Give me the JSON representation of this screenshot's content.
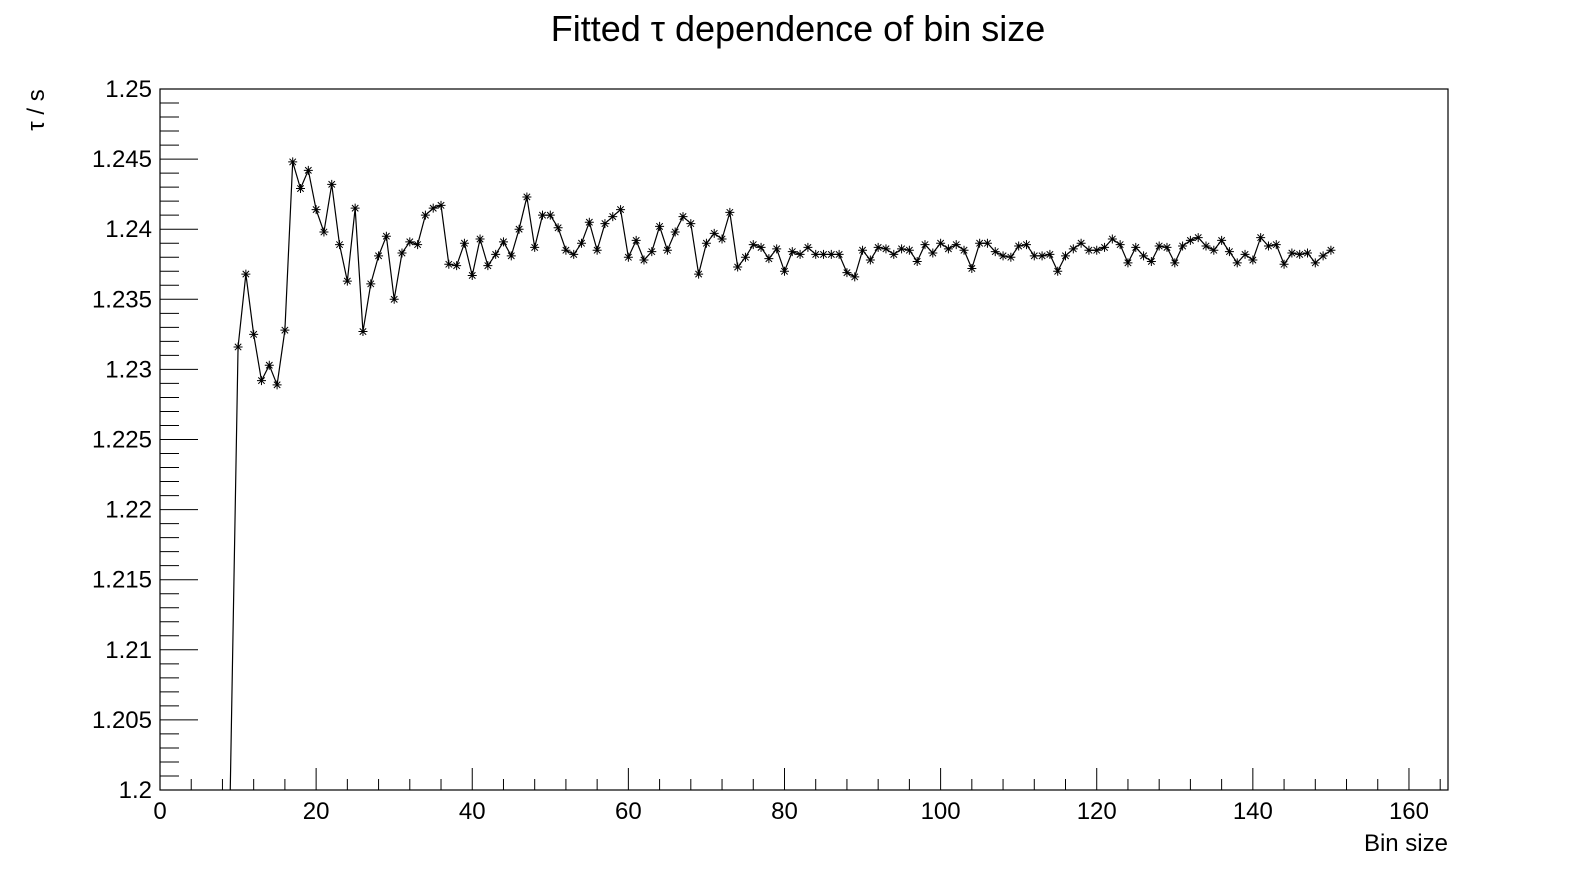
{
  "chart_data": {
    "type": "line",
    "title": "Fitted τ dependence of bin size",
    "xlabel": "Bin size",
    "ylabel": "τ / s",
    "xlim": [
      0,
      165
    ],
    "ylim": [
      1.2,
      1.25
    ],
    "x_ticks": [
      "0",
      "20",
      "40",
      "60",
      "80",
      "100",
      "120",
      "140",
      "160"
    ],
    "y_ticks": [
      "1.2",
      "1.205",
      "1.21",
      "1.215",
      "1.22",
      "1.225",
      "1.23",
      "1.235",
      "1.24",
      "1.245",
      "1.25"
    ],
    "grid": false,
    "marker": "star",
    "line_color": "#000000",
    "series": [
      {
        "x": [
          9,
          10,
          11,
          12,
          13,
          14,
          15,
          16,
          17,
          18,
          19,
          20,
          21,
          22,
          23,
          24,
          25,
          26,
          27,
          28,
          29,
          30,
          31,
          32,
          33,
          34,
          35,
          36,
          37,
          38,
          39,
          40,
          41,
          42,
          43,
          44,
          45,
          46,
          47,
          48,
          49,
          50,
          51,
          52,
          53,
          54,
          55,
          56,
          57,
          58,
          59,
          60,
          61,
          62,
          63,
          64,
          65,
          66,
          67,
          68,
          69,
          70,
          71,
          72,
          73,
          74,
          75,
          76,
          77,
          78,
          79,
          80,
          81,
          82,
          83,
          84,
          85,
          86,
          87,
          88,
          89,
          90,
          91,
          92,
          93,
          94,
          95,
          96,
          97,
          98,
          99,
          100,
          101,
          102,
          103,
          104,
          105,
          106,
          107,
          108,
          109,
          110,
          111,
          112,
          113,
          114,
          115,
          116,
          117,
          118,
          119,
          120,
          121,
          122,
          123,
          124,
          125,
          126,
          127,
          128,
          129,
          130,
          131,
          132,
          133,
          134,
          135,
          136,
          137,
          138,
          139,
          140,
          141,
          142,
          143,
          144,
          145,
          146,
          147,
          148,
          149,
          150
        ],
        "y": [
          1.2,
          1.2316,
          1.2368,
          1.2325,
          1.2292,
          1.2303,
          1.2289,
          1.2328,
          1.2448,
          1.2429,
          1.2442,
          1.2414,
          1.2398,
          1.2432,
          1.2389,
          1.2363,
          1.2415,
          1.2327,
          1.2361,
          1.2381,
          1.2395,
          1.235,
          1.2383,
          1.2391,
          1.2389,
          1.241,
          1.2415,
          1.2417,
          1.2375,
          1.2374,
          1.239,
          1.2367,
          1.2393,
          1.2374,
          1.2382,
          1.2391,
          1.2381,
          1.24,
          1.2423,
          1.2387,
          1.241,
          1.241,
          1.2401,
          1.2385,
          1.2382,
          1.239,
          1.2405,
          1.2385,
          1.2404,
          1.2409,
          1.2414,
          1.238,
          1.2392,
          1.2378,
          1.2384,
          1.2402,
          1.2385,
          1.2398,
          1.2409,
          1.2404,
          1.2368,
          1.239,
          1.2397,
          1.2393,
          1.2412,
          1.2373,
          1.238,
          1.2389,
          1.2387,
          1.2379,
          1.2386,
          1.237,
          1.2384,
          1.2382,
          1.2387,
          1.2382,
          1.2382,
          1.2382,
          1.2382,
          1.2369,
          1.2366,
          1.2385,
          1.2378,
          1.2387,
          1.2386,
          1.2382,
          1.2386,
          1.2385,
          1.2377,
          1.2389,
          1.2383,
          1.239,
          1.2386,
          1.2389,
          1.2385,
          1.2372,
          1.239,
          1.239,
          1.2384,
          1.2381,
          1.238,
          1.2388,
          1.2389,
          1.2381,
          1.2381,
          1.2382,
          1.237,
          1.2381,
          1.2386,
          1.239,
          1.2385,
          1.2385,
          1.2387,
          1.2393,
          1.2389,
          1.2376,
          1.2387,
          1.2381,
          1.2377,
          1.2388,
          1.2387,
          1.2376,
          1.2388,
          1.2392,
          1.2394,
          1.2388,
          1.2385,
          1.2392,
          1.2384,
          1.2376,
          1.2382,
          1.2378,
          1.2394,
          1.2388,
          1.2389,
          1.2375,
          1.2383,
          1.2382,
          1.2383,
          1.2376,
          1.2381,
          1.2385
        ]
      }
    ]
  }
}
